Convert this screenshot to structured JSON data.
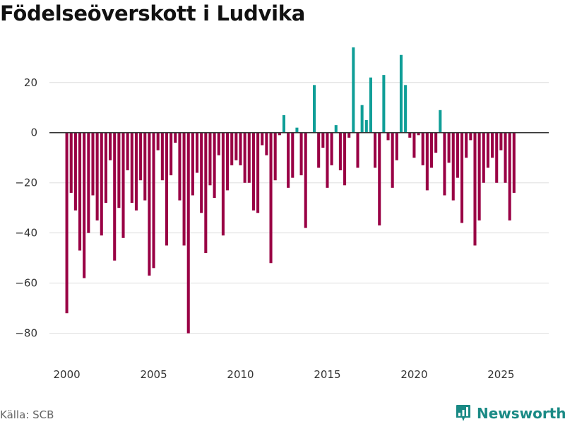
{
  "title": "Födelseöverskott i Ludvika",
  "source": "Källa: SCB",
  "brand": "Newsworthy",
  "colors": {
    "negative": "#990044",
    "positive": "#0f9e97",
    "grid": "#dddddd",
    "zero": "#333333",
    "text": "#333333",
    "brand": "#1a8a85"
  },
  "chart_data": {
    "type": "bar",
    "title": "Födelseöverskott i Ludvika",
    "xlabel": "",
    "ylabel": "",
    "x_range": [
      1999.0,
      2027.75
    ],
    "ylim": [
      -88,
      36
    ],
    "y_ticks": [
      20,
      0,
      -20,
      -40,
      -60,
      -80
    ],
    "y_tick_labels": [
      "20",
      "0",
      "−20",
      "−40",
      "−60",
      "−80"
    ],
    "x_ticks": [
      2000,
      2005,
      2010,
      2015,
      2020,
      2025
    ],
    "x_tick_labels": [
      "2000",
      "2005",
      "2010",
      "2015",
      "2020",
      "2025"
    ],
    "grid": true,
    "series": [
      {
        "name": "Födelseöverskott",
        "start_year": 2000,
        "period": "quarter",
        "values": [
          -72,
          -24,
          -31,
          -47,
          -58,
          -40,
          -25,
          -35,
          -41,
          -28,
          -11,
          -51,
          -30,
          -42,
          -15,
          -28,
          -31,
          -19,
          -27,
          -57,
          -54,
          -7,
          -19,
          -45,
          -17,
          -4,
          -27,
          -45,
          -80,
          -25,
          -16,
          -32,
          -48,
          -21,
          -26,
          -9,
          -41,
          -23,
          -13,
          -11,
          -13,
          -20,
          -20,
          -31,
          -32,
          -5,
          -9,
          -52,
          -19,
          -1,
          7,
          -22,
          -18,
          2,
          -17,
          -38,
          0,
          19,
          -14,
          -6,
          -22,
          -13,
          3,
          -15,
          -21,
          -2,
          34,
          -14,
          11,
          5,
          22,
          -14,
          -37,
          23,
          -3,
          -22,
          -11,
          31,
          19,
          -2,
          -10,
          -1,
          -13,
          -23,
          -14,
          -8,
          9,
          -25,
          -12,
          -27,
          -18,
          -36,
          -10,
          -3,
          -45,
          -35,
          -20,
          -14,
          -10,
          -20,
          -7,
          -20,
          -35,
          -24
        ]
      }
    ]
  }
}
